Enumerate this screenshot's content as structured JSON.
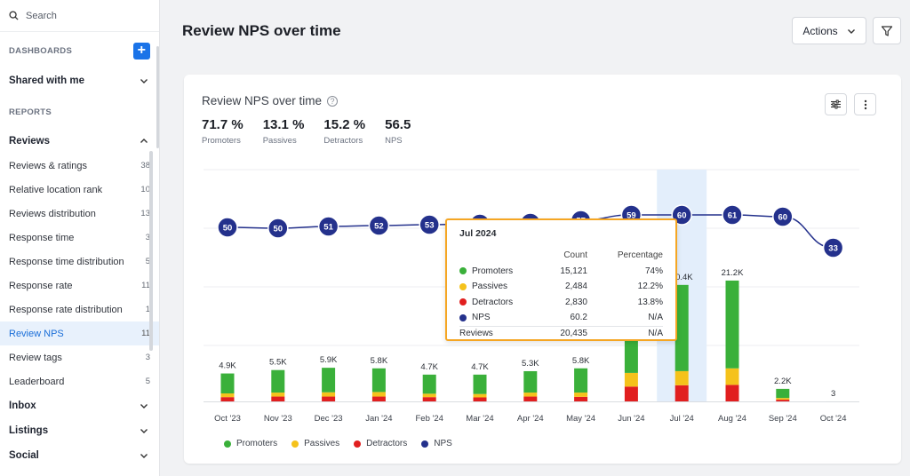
{
  "sidebar": {
    "search_label": "Search",
    "dashboards_header": "DASHBOARDS",
    "shared_label": "Shared with me",
    "reports_header": "REPORTS",
    "reviews_label": "Reviews",
    "items": [
      {
        "label": "Reviews & ratings",
        "count": "38"
      },
      {
        "label": "Relative location rank",
        "count": "10"
      },
      {
        "label": "Reviews distribution",
        "count": "13"
      },
      {
        "label": "Response time",
        "count": "3"
      },
      {
        "label": "Response time distribution",
        "count": "5"
      },
      {
        "label": "Response rate",
        "count": "11"
      },
      {
        "label": "Response rate distribution",
        "count": "1"
      },
      {
        "label": "Review NPS",
        "count": "11"
      },
      {
        "label": "Review tags",
        "count": "3"
      },
      {
        "label": "Leaderboard",
        "count": "5"
      }
    ],
    "groups": [
      "Inbox",
      "Listings",
      "Social"
    ]
  },
  "header": {
    "title": "Review NPS over time",
    "actions_label": "Actions"
  },
  "card": {
    "title": "Review NPS over time",
    "help_glyph": "?",
    "stats": [
      {
        "value": "71.7 %",
        "label": "Promoters"
      },
      {
        "value": "13.1 %",
        "label": "Passives"
      },
      {
        "value": "15.2 %",
        "label": "Detractors"
      },
      {
        "value": "56.5",
        "label": "NPS"
      }
    ]
  },
  "chart_data": {
    "type": "bar",
    "categories": [
      "Oct '23",
      "Nov '23",
      "Dec '23",
      "Jan '24",
      "Feb '24",
      "Mar '24",
      "Apr '24",
      "May '24",
      "Jun '24",
      "Jul '24",
      "Aug '24",
      "Sep '24",
      "Oct '24"
    ],
    "bar_labels": [
      "4.9K",
      "5.5K",
      "5.9K",
      "5.8K",
      "4.7K",
      "4.7K",
      "5.3K",
      "5.8K",
      "",
      "20.4K",
      "21.2K",
      "2.2K",
      "3"
    ],
    "series": [
      {
        "name": "Promoters",
        "color": "#3ab03a",
        "values": [
          3500,
          3950,
          4300,
          4150,
          3350,
          3400,
          3750,
          4250,
          12000,
          15121,
          15400,
          1600,
          2
        ]
      },
      {
        "name": "Passives",
        "color": "#f5c21b",
        "values": [
          650,
          700,
          750,
          800,
          600,
          600,
          700,
          750,
          2400,
          2484,
          2900,
          300,
          1
        ]
      },
      {
        "name": "Detractors",
        "color": "#e11f1f",
        "values": [
          750,
          850,
          850,
          850,
          750,
          700,
          850,
          800,
          2600,
          2830,
          2900,
          300,
          0
        ]
      }
    ],
    "nps": {
      "name": "NPS",
      "color": "#24318c",
      "values": [
        50,
        50,
        51,
        52,
        53,
        54,
        55,
        57,
        59,
        60,
        61,
        60,
        33
      ]
    },
    "highlight_index": 9,
    "highlight_color": "#e3eefb",
    "legend": [
      "Promoters",
      "Passives",
      "Detractors",
      "NPS"
    ],
    "grid": true
  },
  "tooltip": {
    "title": "Jul 2024",
    "head_count": "Count",
    "head_pct": "Percentage",
    "rows": [
      {
        "name": "Promoters",
        "count": "15,121",
        "pct": "74%",
        "color": "#3ab03a"
      },
      {
        "name": "Passives",
        "count": "2,484",
        "pct": "12.2%",
        "color": "#f5c21b"
      },
      {
        "name": "Detractors",
        "count": "2,830",
        "pct": "13.8%",
        "color": "#e11f1f"
      },
      {
        "name": "NPS",
        "count": "60.2",
        "pct": "N/A",
        "color": "#24318c"
      }
    ],
    "total": {
      "name": "Reviews",
      "count": "20,435",
      "pct": "N/A"
    }
  }
}
